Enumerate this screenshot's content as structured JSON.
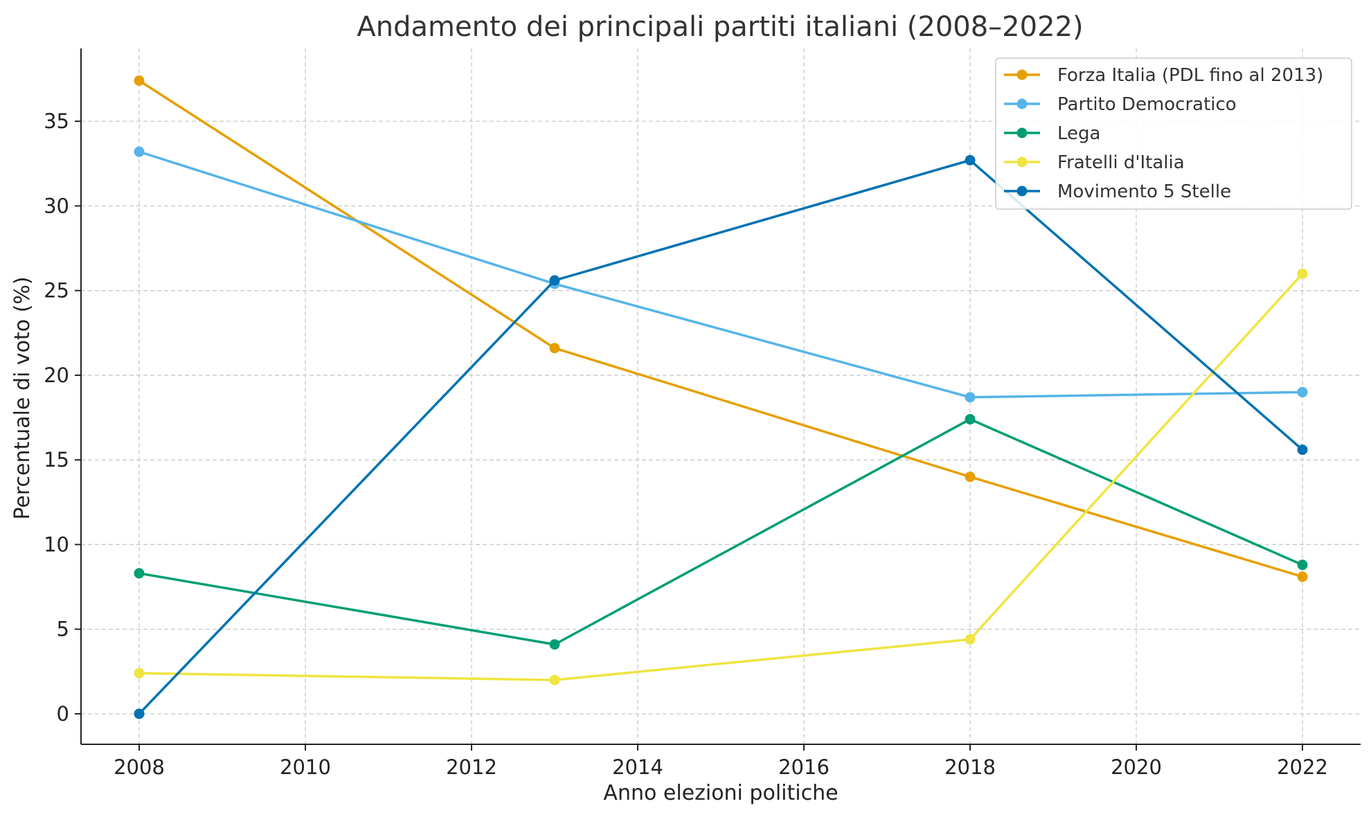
{
  "chart_data": {
    "type": "line",
    "title": "Andamento dei principali partiti italiani (2008–2022)",
    "xlabel": "Anno elezioni politiche",
    "ylabel": "Percentuale di voto (%)",
    "x": [
      2008,
      2013,
      2018,
      2022
    ],
    "xlim": [
      2007.3,
      2022.7
    ],
    "ylim": [
      -1.8,
      39.3
    ],
    "xticks": [
      2008,
      2010,
      2012,
      2014,
      2016,
      2018,
      2020,
      2022
    ],
    "yticks": [
      0,
      5,
      10,
      15,
      20,
      25,
      30,
      35
    ],
    "grid": true,
    "legend_position": "top-right",
    "series": [
      {
        "name": "Forza Italia (PDL fino al 2013)",
        "color": "#E69F00",
        "values": [
          37.4,
          21.6,
          14.0,
          8.1
        ]
      },
      {
        "name": "Partito Democratico",
        "color": "#56B4E9",
        "values": [
          33.2,
          25.4,
          18.7,
          19.0
        ]
      },
      {
        "name": "Lega",
        "color": "#009E73",
        "values": [
          8.3,
          4.1,
          17.4,
          8.8
        ]
      },
      {
        "name": "Fratelli d'Italia",
        "color": "#F0E442",
        "values": [
          2.4,
          2.0,
          4.4,
          26.0
        ]
      },
      {
        "name": "Movimento 5 Stelle",
        "color": "#0072B2",
        "values": [
          0.0,
          25.6,
          32.7,
          15.6
        ]
      }
    ]
  }
}
